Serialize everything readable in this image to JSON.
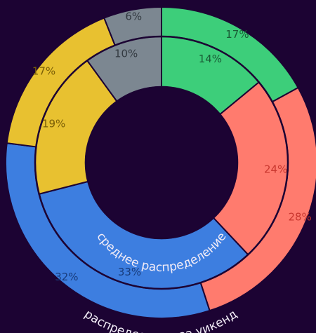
{
  "chart_data": {
    "type": "donut",
    "title": "",
    "series": [
      {
        "name": "среднее распределение",
        "ring": "inner",
        "slices": [
          {
            "label": "14%",
            "value": 14,
            "color": "#3dce7a",
            "label_color": "#1a5c36"
          },
          {
            "label": "24%",
            "value": 24,
            "color": "#ff7b6e",
            "label_color": "#c9372f"
          },
          {
            "label": "33%",
            "value": 33,
            "color": "#3d7ee0",
            "label_color": "#183b7a"
          },
          {
            "label": "19%",
            "value": 19,
            "color": "#e8c130",
            "label_color": "#7a5e07"
          },
          {
            "label": "10%",
            "value": 10,
            "color": "#7c8791",
            "label_color": "#333a41"
          }
        ]
      },
      {
        "name": "распределение за уикенд",
        "ring": "outer",
        "slices": [
          {
            "label": "17%",
            "value": 17,
            "color": "#3dce7a",
            "label_color": "#1a5c36"
          },
          {
            "label": "28%",
            "value": 28,
            "color": "#ff7b6e",
            "label_color": "#c9372f"
          },
          {
            "label": "32%",
            "value": 32,
            "color": "#3d7ee0",
            "label_color": "#183b7a"
          },
          {
            "label": "17%",
            "value": 17,
            "color": "#e8c130",
            "label_color": "#7a5e07"
          },
          {
            "label": "6%",
            "value": 6,
            "color": "#7c8791",
            "label_color": "#333a41"
          }
        ]
      }
    ],
    "start_angle_deg": 0,
    "direction": "clockwise",
    "legend": "none"
  },
  "colors": {
    "background": "#1c0333",
    "ring_separator": "#1c0333"
  }
}
